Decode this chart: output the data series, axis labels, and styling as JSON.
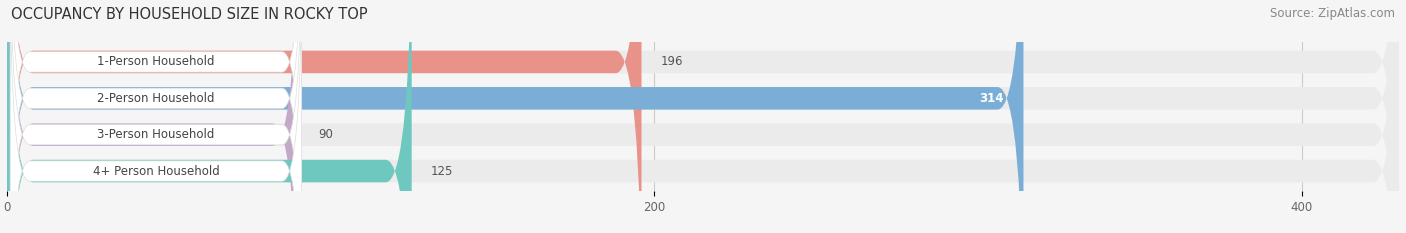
{
  "title": "OCCUPANCY BY HOUSEHOLD SIZE IN ROCKY TOP",
  "source": "Source: ZipAtlas.com",
  "categories": [
    "1-Person Household",
    "2-Person Household",
    "3-Person Household",
    "4+ Person Household"
  ],
  "values": [
    196,
    314,
    90,
    125
  ],
  "bar_colors": [
    "#E8928A",
    "#7aaed6",
    "#C4A8C8",
    "#6EC8C0"
  ],
  "xlim_min": 0,
  "xlim_max": 430,
  "xticks": [
    0,
    200,
    400
  ],
  "title_fontsize": 10.5,
  "source_fontsize": 8.5,
  "label_fontsize": 8.5,
  "value_fontsize": 8.5,
  "background_color": "#f5f5f5",
  "bar_bg_color": "#ebebeb",
  "label_bg_color": "#ffffff"
}
